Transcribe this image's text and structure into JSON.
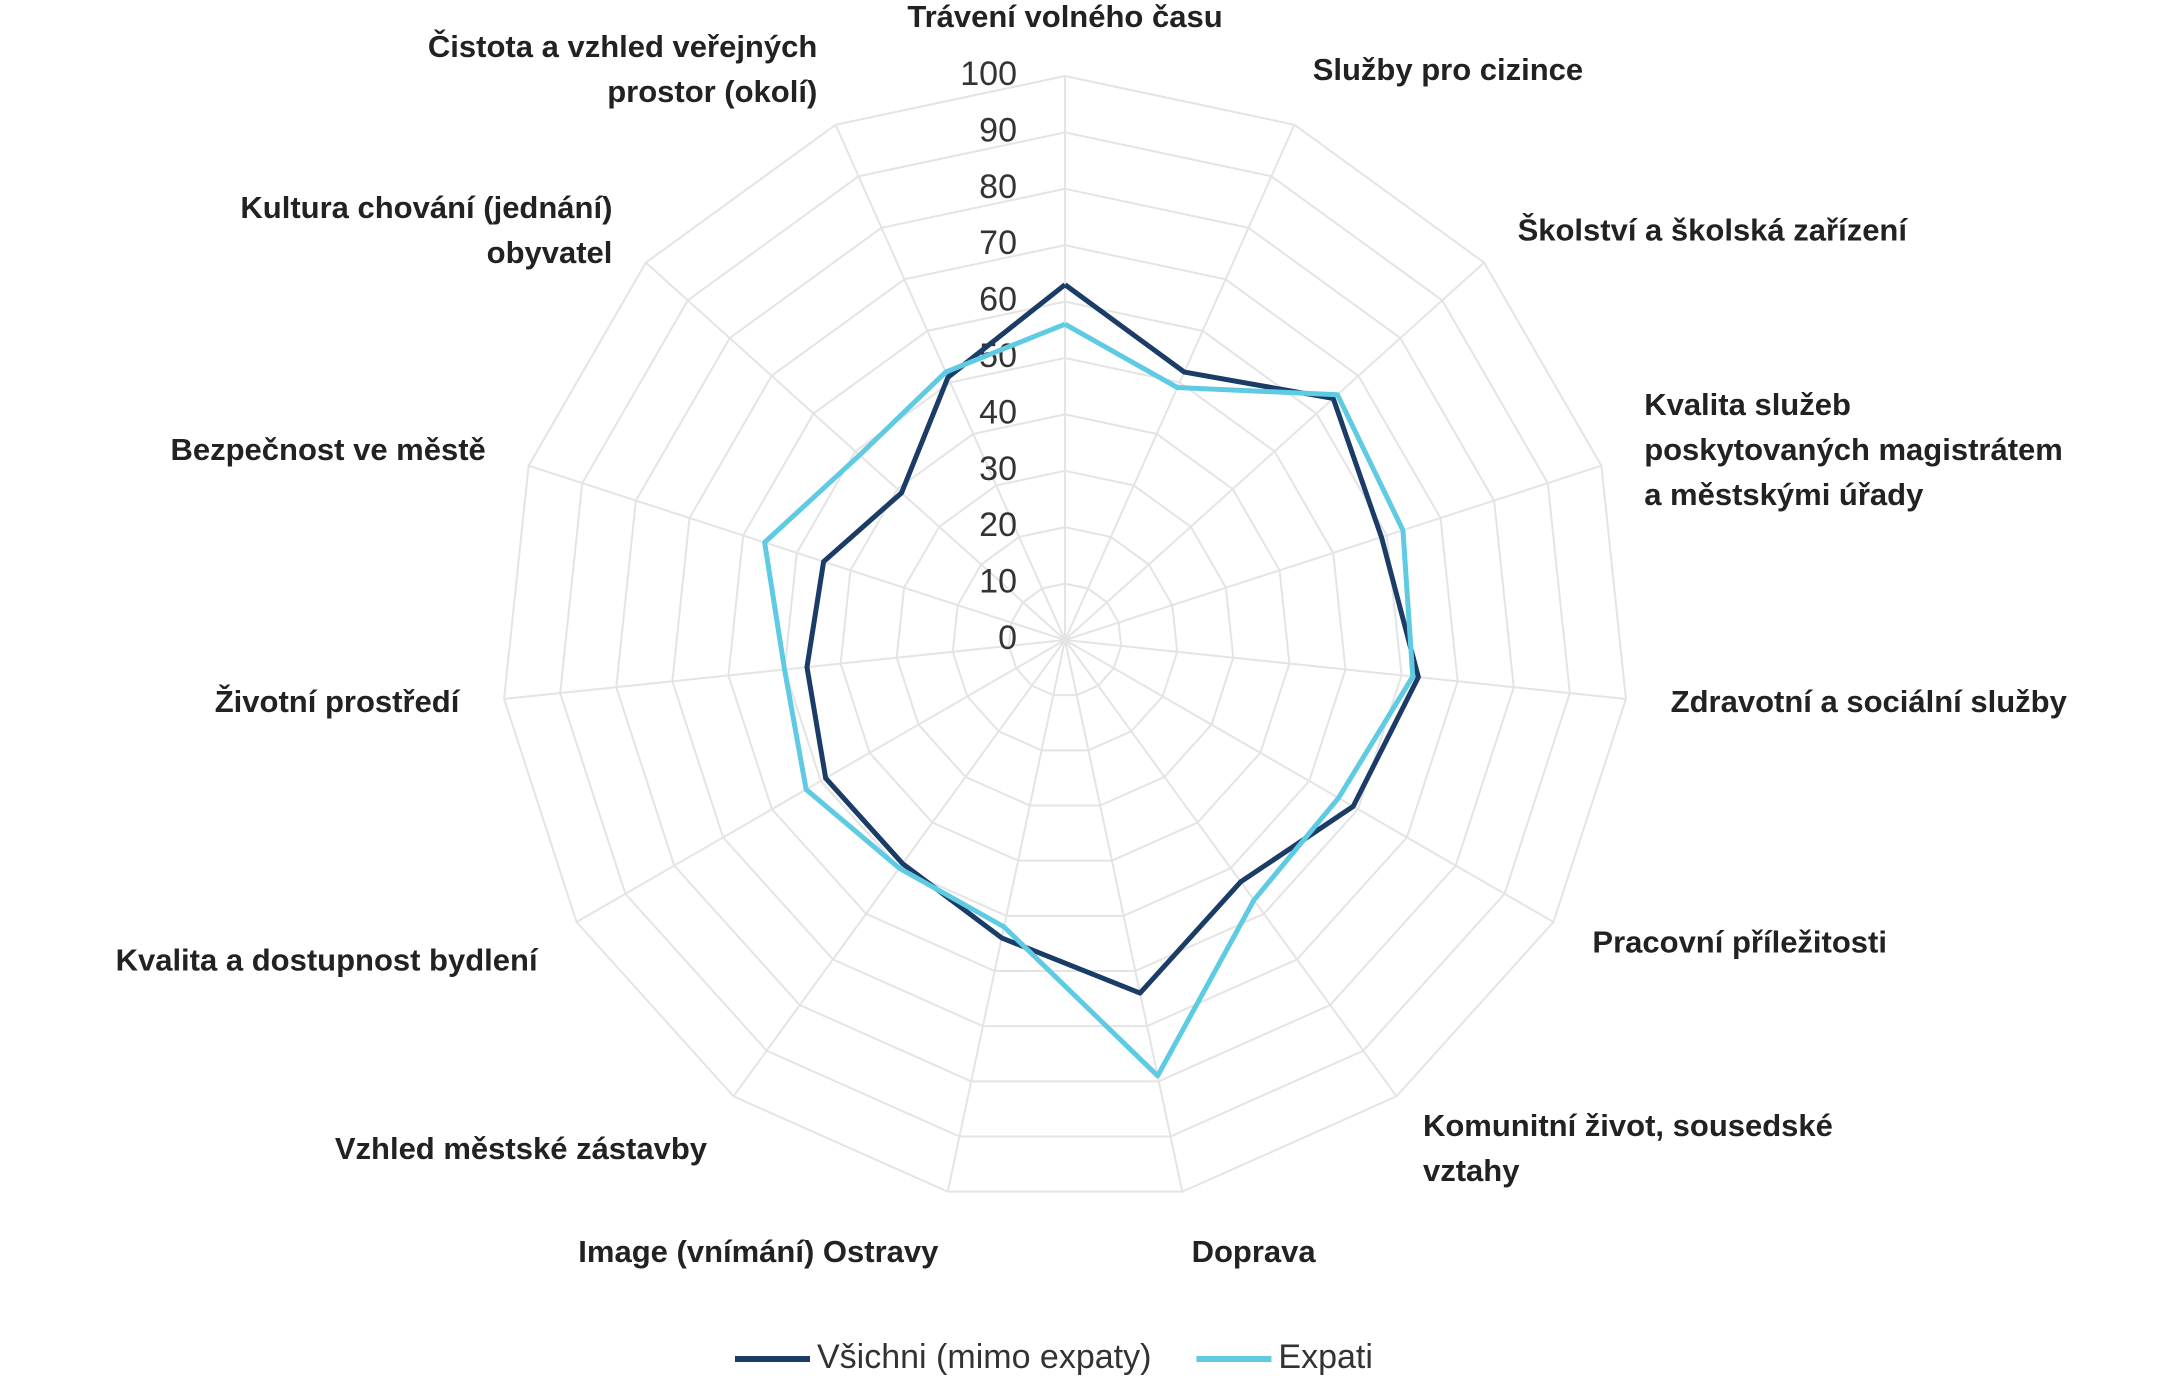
{
  "chart_data": {
    "type": "radar",
    "categories": [
      "Trávení volného času",
      "Služby pro cizince",
      "Školství a školská zařízení",
      "Kvalita služeb\nposkytovaných magistrátem\na městskými úřady",
      "Zdravotní a sociální služby",
      "Pracovní příležitosti",
      "Komunitní život, sousedské\nvztahy",
      "Doprava",
      "Image (vnímání) Ostravy",
      "Vzhled městské zástavby",
      "Kvalita a dostupnost bydlení",
      "Životní prostředí",
      "Bezpečnost ve městě",
      "Kultura chování (jednání)\nobyvatel",
      "Čistota a vzhled veřejných\nprostor (okolí)"
    ],
    "series": [
      {
        "name": "Všichni (mimo expaty)",
        "color": "#1b3c66",
        "values": [
          63,
          52,
          64,
          59,
          63,
          59,
          53,
          64,
          54,
          49,
          49,
          46,
          45,
          39,
          51
        ]
      },
      {
        "name": "Expati",
        "color": "#5fcbe3",
        "values": [
          56,
          49,
          65,
          63,
          62,
          56,
          57,
          79,
          52,
          50,
          53,
          50,
          56,
          49,
          52
        ]
      }
    ],
    "ylim": [
      0,
      100
    ],
    "yticks": [
      0,
      10,
      20,
      30,
      40,
      50,
      60,
      70,
      80,
      90,
      100
    ],
    "grid": true,
    "legend": "bottom"
  }
}
